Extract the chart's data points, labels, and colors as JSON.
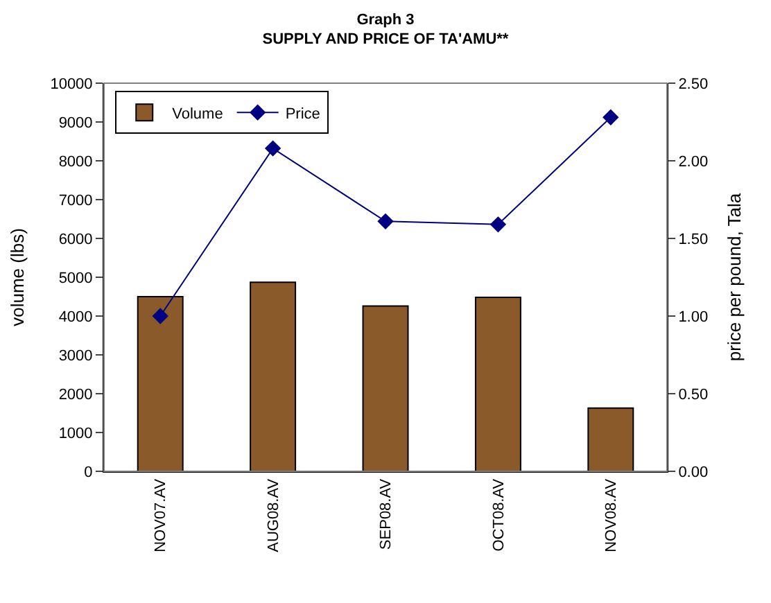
{
  "chart_data": {
    "type": "bar",
    "title": "Graph 3",
    "subtitle": "SUPPLY AND PRICE OF TA'AMU**",
    "ylabel": "volume (lbs)",
    "y2label": "price per pound, Tala",
    "categories": [
      "NOV07.AV",
      "AUG08.AV",
      "SEP08.AV",
      "OCT08.AV",
      "NOV08.AV"
    ],
    "series": [
      {
        "name": "Volume",
        "color": "#8b5a2b",
        "values": [
          4500,
          4870,
          4260,
          4480,
          1630
        ]
      },
      {
        "name": "Price",
        "type": "line",
        "axis": "y2",
        "color": "#000080",
        "marker": "diamond",
        "values": [
          1.0,
          2.08,
          1.61,
          1.59,
          2.28
        ]
      }
    ],
    "ylim": [
      0,
      10000
    ],
    "yticks": [
      0,
      1000,
      2000,
      3000,
      4000,
      5000,
      6000,
      7000,
      8000,
      9000,
      10000
    ],
    "y2lim": [
      0,
      2.5
    ],
    "y2ticks": [
      {
        "value": 0,
        "label": "0.00"
      },
      {
        "value": 0.5,
        "label": "0.50"
      },
      {
        "value": 1,
        "label": "1.00"
      },
      {
        "value": 1.5,
        "label": "1.50"
      },
      {
        "value": 2,
        "label": "2.00"
      },
      {
        "value": 2.5,
        "label": "2.50"
      }
    ],
    "legend": "top left"
  }
}
